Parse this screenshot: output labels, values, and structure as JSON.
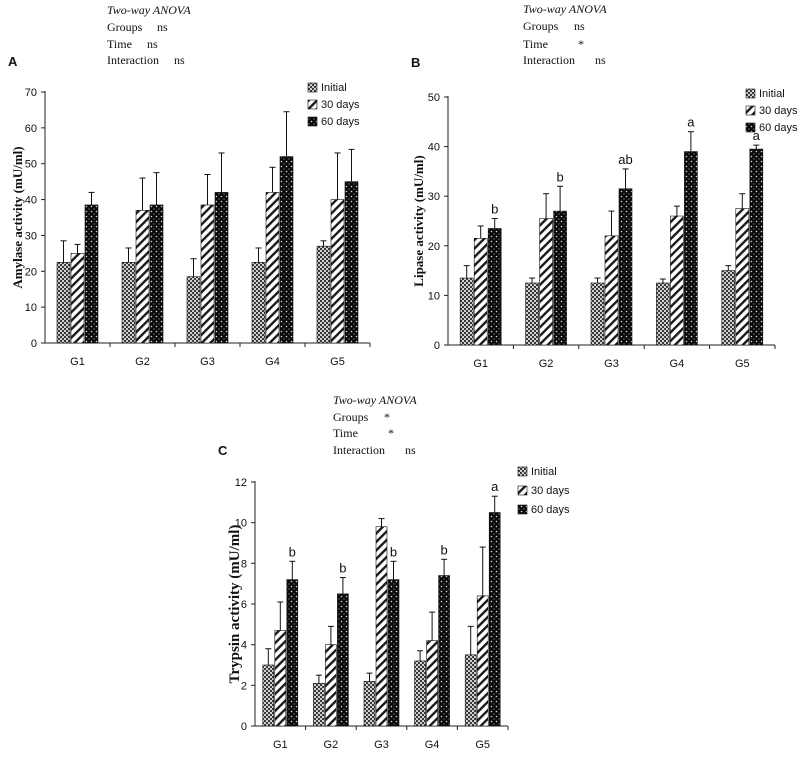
{
  "chart_data": [
    {
      "id": "A",
      "type": "bar",
      "panel_label": "A",
      "anova": {
        "title": "Two-way ANOVA",
        "rows": [
          {
            "label": "Groups",
            "value": "ns"
          },
          {
            "label": "Time",
            "value": "ns"
          },
          {
            "label": "Interaction",
            "value": "ns"
          }
        ]
      },
      "ylabel": "Amylase activity (mU/ml)",
      "ylim": [
        0,
        70
      ],
      "yticks": [
        0,
        10,
        20,
        30,
        40,
        50,
        60,
        70
      ],
      "categories": [
        "G1",
        "G2",
        "G3",
        "G4",
        "G5"
      ],
      "series": [
        {
          "name": "Initial",
          "pattern": "checker",
          "values": [
            22.5,
            22.5,
            18.5,
            22.5,
            27
          ],
          "errors": [
            6,
            4,
            5,
            4,
            1.5
          ]
        },
        {
          "name": "30 days",
          "pattern": "diag",
          "values": [
            25,
            37,
            38.5,
            42,
            40
          ],
          "errors": [
            2.5,
            9,
            8.5,
            7,
            13
          ]
        },
        {
          "name": "60 days",
          "pattern": "dots",
          "values": [
            38.5,
            38.5,
            42,
            52,
            45
          ],
          "errors": [
            3.5,
            9,
            11,
            12.5,
            9
          ]
        }
      ],
      "annotations": [
        "",
        "",
        "",
        "",
        ""
      ]
    },
    {
      "id": "B",
      "type": "bar",
      "panel_label": "B",
      "anova": {
        "title": "Two-way ANOVA",
        "rows": [
          {
            "label": "Groups",
            "value": "ns"
          },
          {
            "label": "Time",
            "value": "*"
          },
          {
            "label": "Interaction",
            "value": "ns"
          }
        ]
      },
      "ylabel": "Lipase activity (mU/ml)",
      "ylim": [
        0,
        50
      ],
      "yticks": [
        0,
        10,
        20,
        30,
        40,
        50
      ],
      "categories": [
        "G1",
        "G2",
        "G3",
        "G4",
        "G5"
      ],
      "series": [
        {
          "name": "Initial",
          "pattern": "checker",
          "values": [
            13.5,
            12.5,
            12.5,
            12.5,
            15
          ],
          "errors": [
            2.5,
            1,
            1,
            0.8,
            1
          ]
        },
        {
          "name": "30 days",
          "pattern": "diag",
          "values": [
            21.5,
            25.5,
            22,
            26,
            27.5
          ],
          "errors": [
            2.5,
            5,
            5,
            2,
            3
          ]
        },
        {
          "name": "60 days",
          "pattern": "dots",
          "values": [
            23.5,
            27,
            31.5,
            39,
            39.5
          ],
          "errors": [
            2,
            5,
            4,
            4,
            0.8
          ]
        }
      ],
      "annotations": [
        "b",
        "b",
        "ab",
        "a",
        "a"
      ]
    },
    {
      "id": "C",
      "type": "bar",
      "panel_label": "C",
      "anova": {
        "title": "Two-way ANOVA",
        "rows": [
          {
            "label": "Groups",
            "value": "*"
          },
          {
            "label": "Time",
            "value": "*"
          },
          {
            "label": "Interaction",
            "value": "ns"
          }
        ]
      },
      "ylabel": "Trypsin activity (mU/ml)",
      "ylim": [
        0,
        12
      ],
      "yticks": [
        0,
        2,
        4,
        6,
        8,
        10,
        12
      ],
      "categories": [
        "G1",
        "G2",
        "G3",
        "G4",
        "G5"
      ],
      "series": [
        {
          "name": "Initial",
          "pattern": "checker",
          "values": [
            3,
            2.1,
            2.2,
            3.2,
            3.5
          ],
          "errors": [
            0.8,
            0.4,
            0.4,
            0.5,
            1.4
          ]
        },
        {
          "name": "30 days",
          "pattern": "diag",
          "values": [
            4.7,
            4,
            9.8,
            4.2,
            6.4
          ],
          "errors": [
            1.4,
            0.9,
            0.4,
            1.4,
            2.4
          ]
        },
        {
          "name": "60 days",
          "pattern": "dots",
          "values": [
            7.2,
            6.5,
            7.2,
            7.4,
            10.5
          ],
          "errors": [
            0.9,
            0.8,
            0.9,
            0.8,
            0.8
          ]
        }
      ],
      "annotations": [
        "b",
        "b",
        "b",
        "b",
        "a"
      ]
    }
  ]
}
